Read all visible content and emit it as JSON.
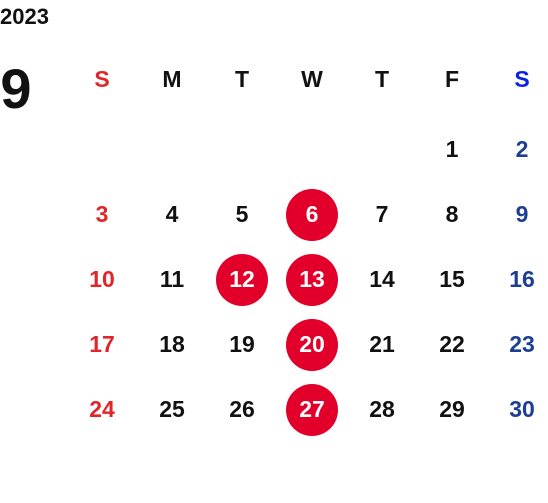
{
  "year": "2023",
  "month": "9",
  "weekdays": [
    "S",
    "M",
    "T",
    "W",
    "T",
    "F",
    "S"
  ],
  "weeks": [
    [
      null,
      null,
      null,
      null,
      null,
      "1",
      "2"
    ],
    [
      "3",
      "4",
      "5",
      {
        "day": "6",
        "marked": true
      },
      "7",
      "8",
      "9"
    ],
    [
      "10",
      "11",
      {
        "day": "12",
        "marked": true
      },
      {
        "day": "13",
        "marked": true
      },
      "14",
      "15",
      "16"
    ],
    [
      "17",
      "18",
      "19",
      {
        "day": "20",
        "marked": true
      },
      "21",
      "22",
      "23"
    ],
    [
      "24",
      "25",
      "26",
      {
        "day": "27",
        "marked": true
      },
      "28",
      "29",
      "30"
    ]
  ]
}
